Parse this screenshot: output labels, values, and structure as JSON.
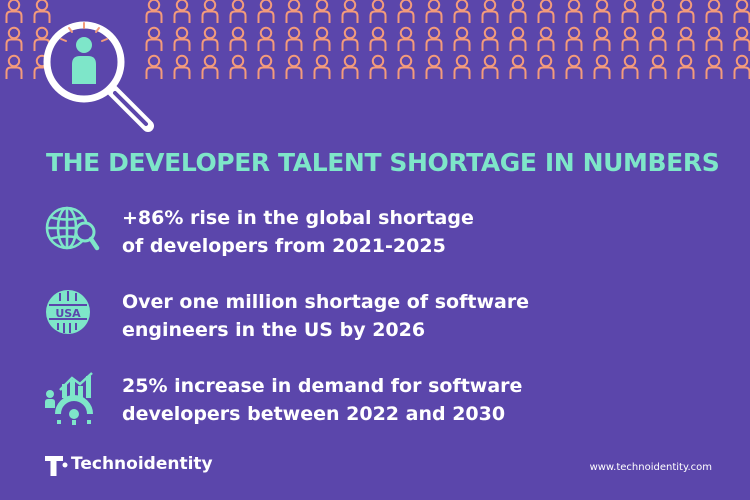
{
  "theme": {
    "background": "#5b46ab",
    "accent": "#7ee6c9",
    "pattern": "#f39b7b",
    "text": "#ffffff"
  },
  "hero": {
    "pattern_icon": "person-silhouette-icon",
    "magnifier_icon": "magnifying-glass-person-icon"
  },
  "headline": "THE DEVELOPER TALENT SHORTAGE IN NUMBERS",
  "stats": [
    {
      "icon": "globe-search-icon",
      "lines": [
        "+86% rise in the global shortage",
        "of developers from 2021-2025"
      ]
    },
    {
      "icon": "usa-badge-icon",
      "badge_text": "USA",
      "lines": [
        "Over one million shortage of software",
        "engineers in the US by 2026"
      ]
    },
    {
      "icon": "growth-chart-gear-icon",
      "lines": [
        "25% increase in demand for software",
        "developers between 2022 and 2030"
      ]
    }
  ],
  "footer": {
    "brand": "Technoidentity",
    "website": "www.technoidentity.com"
  }
}
